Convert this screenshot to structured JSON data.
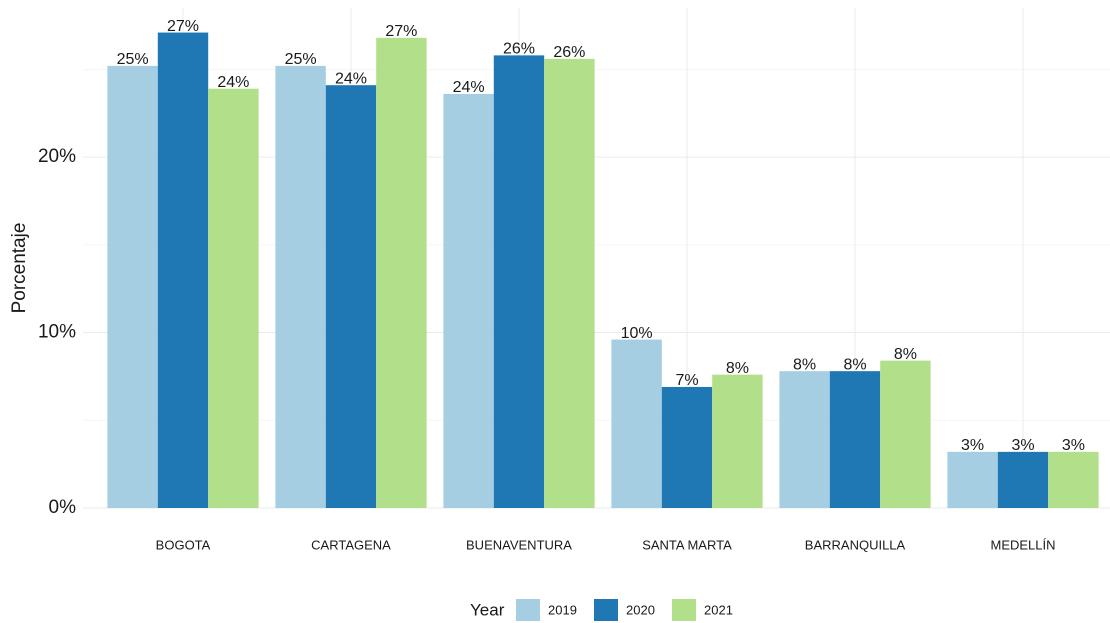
{
  "chart_data": {
    "type": "bar",
    "y_label": "Porcentaje",
    "legend_title": "Year",
    "legend_position": "bottom",
    "categories": [
      "BOGOTA",
      "CARTAGENA",
      "BUENAVENTURA",
      "SANTA MARTA",
      "BARRANQUILLA",
      "MEDELLÍN"
    ],
    "series": [
      {
        "name": "2019",
        "color": "#a6cee3",
        "values": [
          25.2,
          25.2,
          23.6,
          9.6,
          7.8,
          3.2
        ],
        "value_labels": [
          "25%",
          "25%",
          "24%",
          "10%",
          "8%",
          "3%"
        ]
      },
      {
        "name": "2020",
        "color": "#1f78b4",
        "values": [
          27.1,
          24.1,
          25.8,
          6.9,
          7.8,
          3.2
        ],
        "value_labels": [
          "27%",
          "24%",
          "26%",
          "7%",
          "8%",
          "3%"
        ]
      },
      {
        "name": "2021",
        "color": "#b2df8a",
        "values": [
          23.9,
          26.8,
          25.6,
          7.6,
          8.4,
          3.2
        ],
        "value_labels": [
          "24%",
          "27%",
          "26%",
          "8%",
          "8%",
          "3%"
        ]
      }
    ],
    "ylim": [
      0,
      28.5
    ],
    "yticks": [
      {
        "value": 0,
        "label": "0%"
      },
      {
        "value": 10,
        "label": "10%"
      },
      {
        "value": 20,
        "label": "20%"
      }
    ],
    "yminor": [
      5,
      15,
      25
    ],
    "grid": true
  }
}
